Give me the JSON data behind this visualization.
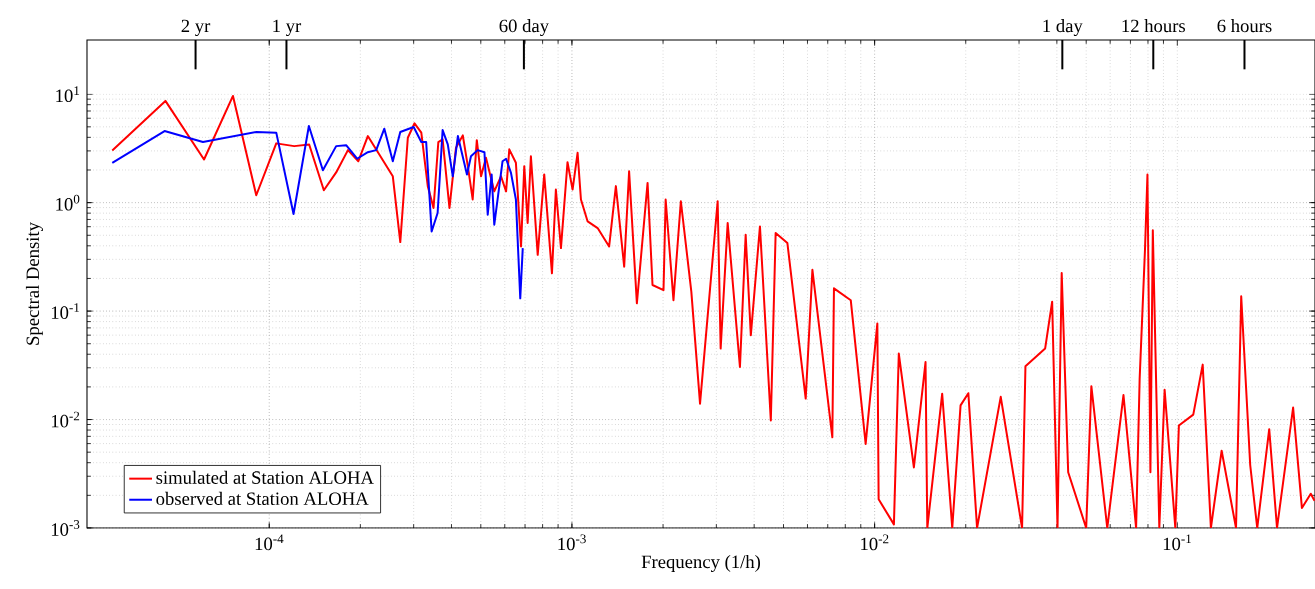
{
  "chart_data": {
    "type": "line",
    "xlabel": "Frequency (1/h)",
    "ylabel": "Spectral Density",
    "log": "xy",
    "grid": true,
    "legend": "bottom left",
    "line_style": "solid",
    "xlim": [
      2.5e-05,
      0.285
    ],
    "ylim": [
      0.001,
      31.6
    ],
    "xticks": [
      {
        "value": 0.0001,
        "label": "10$^{-4}$"
      },
      {
        "value": 0.001,
        "label": "10$^{-3}$"
      },
      {
        "value": 0.01,
        "label": "10$^{-2}$"
      },
      {
        "value": 0.1,
        "label": "10$^{-1}$"
      }
    ],
    "yticks": [
      {
        "value": 0.001,
        "label": "10$^{-3}$"
      },
      {
        "value": 0.01,
        "label": "10$^{-2}$"
      },
      {
        "value": 0.1,
        "label": "10$^{-1}$"
      },
      {
        "value": 1,
        "label": "10$^{0}$"
      },
      {
        "value": 10,
        "label": "10$^{1}$"
      }
    ],
    "ref_lines": [
      {
        "axis": "x",
        "value": 5.71e-05,
        "label": "2 yr"
      },
      {
        "axis": "x",
        "value": 0.000114,
        "label": "1 yr"
      },
      {
        "axis": "x",
        "value": 0.000694,
        "label": "60 day"
      },
      {
        "axis": "x",
        "value": 0.0417,
        "label": "1 day"
      },
      {
        "axis": "x",
        "value": 0.0833,
        "label": "12 hours"
      },
      {
        "axis": "x",
        "value": 0.1667,
        "label": "6 hours"
      }
    ],
    "series": [
      {
        "name": "simulated at Station ALOHA",
        "color": "#ff0000",
        "x": [
          3.03e-05,
          4.54e-05,
          6.09e-05,
          7.59e-05,
          9.06e-05,
          0.0001055,
          0.0001209,
          0.0001355,
          0.0001515,
          0.0001664,
          0.000182,
          0.000197,
          0.0002117,
          0.000256,
          0.000271,
          0.000287,
          0.000302,
          0.000318,
          0.000334,
          0.000349,
          0.000362,
          0.000374,
          0.000394,
          0.000414,
          0.000436,
          0.000453,
          0.00047,
          0.000485,
          0.000501,
          0.00052,
          0.000554,
          0.000583,
          0.000606,
          0.000621,
          0.000653,
          0.000679,
          0.000696,
          0.000714,
          0.000732,
          0.000771,
          0.00081,
          0.000859,
          0.000885,
          0.00092,
          0.000967,
          0.001005,
          0.001044,
          0.001071,
          0.001127,
          0.001216,
          0.001327,
          0.001397,
          0.001488,
          0.001545,
          0.001639,
          0.001778,
          0.001846,
          0.002007,
          0.00204,
          0.002165,
          0.00229,
          0.00248,
          0.00265,
          0.00303,
          0.0031,
          0.00327,
          0.00359,
          0.00375,
          0.0039,
          0.00418,
          0.00454,
          0.00471,
          0.00515,
          0.00592,
          0.00623,
          0.00725,
          0.00734,
          0.00834,
          0.00934,
          0.01021,
          0.01031,
          0.01158,
          0.01202,
          0.01348,
          0.01473,
          0.01493,
          0.01672,
          0.01805,
          0.01923,
          0.0204,
          0.0218,
          0.0261,
          0.0307,
          0.0315,
          0.0366,
          0.0386,
          0.0402,
          0.0415,
          0.0436,
          0.05,
          0.052,
          0.0587,
          0.0664,
          0.0731,
          0.0751,
          0.0782,
          0.0797,
          0.0815,
          0.083,
          0.0872,
          0.0908,
          0.0985,
          0.1012,
          0.1129,
          0.1213,
          0.1291,
          0.1401,
          0.1563,
          0.1626,
          0.1741,
          0.1837,
          0.2012,
          0.2135,
          0.2413,
          0.258,
          0.276,
          0.284
        ],
        "values": [
          3.03,
          8.67,
          2.5,
          9.64,
          1.17,
          3.52,
          3.32,
          3.44,
          1.3,
          1.9,
          3.05,
          2.41,
          4.11,
          1.75,
          0.433,
          3.97,
          5.39,
          4.42,
          1.42,
          0.893,
          3.62,
          3.83,
          0.893,
          3.21,
          4.17,
          2.17,
          1.07,
          3.77,
          1.75,
          2.59,
          1.27,
          1.75,
          1.27,
          3.1,
          2.33,
          0.394,
          2.17,
          0.649,
          2.68,
          0.33,
          1.82,
          0.223,
          1.32,
          0.381,
          2.36,
          1.32,
          2.88,
          1.07,
          0.671,
          0.583,
          0.394,
          1.42,
          0.257,
          1.95,
          0.118,
          1.52,
          0.174,
          0.156,
          1.07,
          0.126,
          1.03,
          0.151,
          0.014,
          1.03,
          0.0451,
          0.649,
          0.0305,
          0.506,
          0.06,
          0.604,
          0.0098,
          0.524,
          0.424,
          0.0156,
          0.24,
          0.00686,
          0.162,
          0.126,
          0.00596,
          0.0769,
          0.00184,
          0.00108,
          0.0406,
          0.00362,
          0.0339,
          0.001,
          0.0173,
          0.001,
          0.0135,
          0.0175,
          0.001,
          0.0162,
          0.001,
          0.031,
          0.0453,
          0.122,
          0.001,
          0.224,
          0.00327,
          0.001,
          0.0203,
          0.001,
          0.0168,
          0.001,
          0.0237,
          0.367,
          1.82,
          0.00327,
          0.557,
          0.001,
          0.0188,
          0.001,
          0.0088,
          0.0111,
          0.0321,
          0.001,
          0.00516,
          0.001,
          0.137,
          0.00381,
          0.001,
          0.00815,
          0.001,
          0.0129,
          0.00153,
          0.00207,
          0.00178
        ]
      },
      {
        "name": "observed at Station ALOHA",
        "color": "#0000ff",
        "x": [
          3.03e-05,
          4.51e-05,
          6.04e-05,
          9.06e-05,
          0.0001055,
          0.0001203,
          0.0001352,
          0.0001504,
          0.0001664,
          0.0001795,
          0.0001952,
          0.0002117,
          0.0002256,
          0.00024,
          0.000256,
          0.000271,
          0.0003,
          0.000318,
          0.00033,
          0.000344,
          0.00036,
          0.000374,
          0.000389,
          0.000404,
          0.00042,
          0.00045,
          0.000464,
          0.000488,
          0.000514,
          0.000527,
          0.000543,
          0.000554,
          0.00059,
          0.000606,
          0.000629,
          0.000653,
          0.000675,
          0.000688
        ],
        "values": [
          2.33,
          4.57,
          3.62,
          4.48,
          4.42,
          0.786,
          5.09,
          1.99,
          3.32,
          3.39,
          2.54,
          2.92,
          3.05,
          4.81,
          2.41,
          4.48,
          4.98,
          3.62,
          3.62,
          0.542,
          0.803,
          4.67,
          3.44,
          1.75,
          4.11,
          1.82,
          2.68,
          3.05,
          2.92,
          0.774,
          1.82,
          0.626,
          2.41,
          2.54,
          1.88,
          1.07,
          0.131,
          0.381
        ]
      }
    ]
  }
}
